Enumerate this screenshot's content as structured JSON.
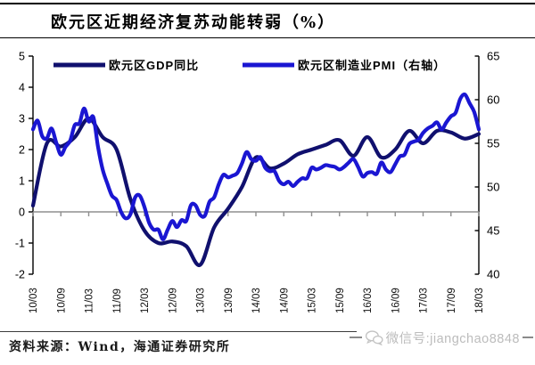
{
  "title": {
    "text": "欧元区近期经济复苏动能转弱（%）"
  },
  "legend": [
    {
      "label": "欧元区GDP同比",
      "color": "#10106e"
    },
    {
      "label": "欧元区制造业PMI（右轴）",
      "color": "#1a16d2"
    }
  ],
  "footer": {
    "source": "资料来源：Wind，海通证券研究所",
    "watermark": "微信号:jiangchao8848"
  },
  "chart_data": {
    "type": "line",
    "title": "欧元区近期经济复苏动能转弱（%）",
    "x_tick_labels": [
      "10/03",
      "10/09",
      "11/03",
      "11/09",
      "12/03",
      "12/09",
      "13/03",
      "13/09",
      "14/03",
      "14/09",
      "15/03",
      "15/09",
      "16/03",
      "16/09",
      "17/03",
      "17/09",
      "18/03"
    ],
    "left_axis": {
      "label": "",
      "min": -2,
      "max": 5,
      "ticks": [
        5,
        4,
        3,
        2,
        1,
        0,
        -1,
        -2
      ]
    },
    "right_axis": {
      "label": "",
      "min": 40,
      "max": 65,
      "ticks": [
        65,
        60,
        55,
        50,
        45,
        40
      ]
    },
    "zero_line": true,
    "grid": false,
    "legend_position": "top-inside",
    "colors": {
      "gdp": "#10106e",
      "pmi": "#1a16d2",
      "zero_line": "#8f8f8f",
      "axis": "#000000"
    },
    "series": [
      {
        "name": "欧元区GDP同比",
        "axis": "left",
        "color": "#10106e",
        "frequency": "quarterly",
        "start": "2010-03",
        "values": [
          0.2,
          2.2,
          2.1,
          2.4,
          3.0,
          2.4,
          2.0,
          0.4,
          -0.6,
          -1.0,
          -0.95,
          -1.1,
          -1.7,
          -0.5,
          0.1,
          0.8,
          1.75,
          1.4,
          1.55,
          1.85,
          2.0,
          2.15,
          2.3,
          1.8,
          2.4,
          1.75,
          2.0,
          2.6,
          2.2,
          2.6,
          2.55,
          2.35,
          2.5
        ]
      },
      {
        "name": "欧元区制造业PMI（右轴）",
        "axis": "right",
        "color": "#1a16d2",
        "frequency": "monthly",
        "start": "2010-03",
        "values": [
          56.6,
          57.6,
          55.8,
          55.6,
          56.7,
          55.1,
          53.7,
          54.6,
          55.3,
          57.1,
          57.3,
          59.0,
          57.5,
          58.0,
          54.6,
          52.0,
          50.4,
          49.0,
          48.5,
          47.1,
          46.4,
          46.9,
          48.8,
          49.0,
          47.7,
          45.9,
          45.1,
          45.1,
          44.0,
          45.1,
          46.1,
          45.4,
          46.2,
          46.1,
          47.9,
          47.9,
          46.8,
          46.7,
          48.3,
          48.8,
          50.3,
          51.4,
          51.1,
          51.3,
          51.6,
          52.7,
          54.0,
          53.2,
          53.0,
          53.4,
          52.2,
          51.8,
          51.8,
          50.7,
          50.3,
          50.6,
          50.1,
          50.6,
          51.0,
          51.0,
          52.2,
          52.0,
          52.2,
          52.5,
          52.4,
          52.3,
          52.0,
          52.3,
          52.8,
          53.2,
          52.3,
          51.2,
          51.6,
          51.7,
          51.5,
          52.8,
          52.0,
          51.7,
          52.6,
          53.5,
          53.7,
          54.9,
          55.2,
          55.4,
          56.2,
          56.7,
          57.0,
          57.4,
          56.6,
          57.4,
          58.1,
          58.5,
          60.1,
          60.6,
          59.6,
          58.6,
          56.6
        ]
      }
    ]
  }
}
